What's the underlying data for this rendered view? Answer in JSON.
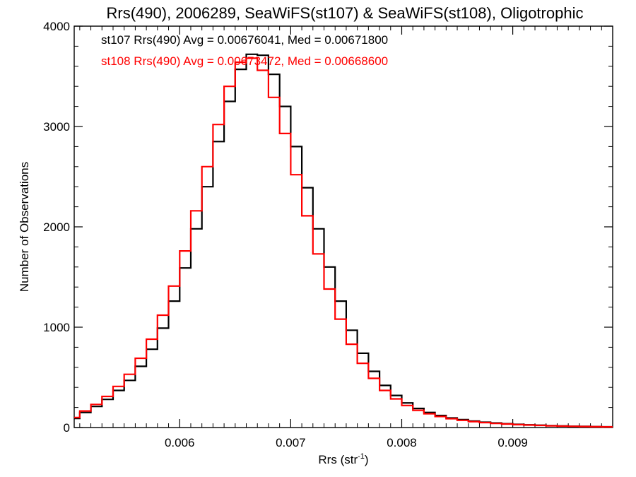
{
  "chart_data": {
    "type": "line",
    "title": "Rrs(490), 2006289, SeaWiFS(st107) & SeaWiFS(st108), Oligotrophic",
    "xlabel": "Rrs (str",
    "xlabel_superscript": "-1",
    "xlabel_suffix": ")",
    "ylabel": "Number of Observations",
    "xlim": [
      0.00505,
      0.0099
    ],
    "ylim": [
      0,
      4000
    ],
    "xticks": [
      {
        "value": 0.006,
        "label": "0.006"
      },
      {
        "value": 0.007,
        "label": "0.007"
      },
      {
        "value": 0.008,
        "label": "0.008"
      },
      {
        "value": 0.009,
        "label": "0.009"
      }
    ],
    "yticks": [
      {
        "value": 0,
        "label": "0"
      },
      {
        "value": 1000,
        "label": "1000"
      },
      {
        "value": 2000,
        "label": "2000"
      },
      {
        "value": 3000,
        "label": "3000"
      },
      {
        "value": 4000,
        "label": "4000"
      }
    ],
    "grid": false,
    "annotations": [
      {
        "text": "st107 Rrs(490) Avg = 0.00676041, Med = 0.00671800",
        "color": "#000000"
      },
      {
        "text": "st108 Rrs(490) Avg = 0.00673472, Med = 0.00668600",
        "color": "#ff0000"
      }
    ],
    "series": [
      {
        "color": "#000000",
        "x": [
          0.00505,
          0.00515,
          0.00525,
          0.00535,
          0.00545,
          0.00555,
          0.00565,
          0.00575,
          0.00585,
          0.00595,
          0.00605,
          0.00615,
          0.00625,
          0.00635,
          0.00645,
          0.00655,
          0.00665,
          0.00675,
          0.00685,
          0.00695,
          0.00705,
          0.00715,
          0.00725,
          0.00735,
          0.00745,
          0.00755,
          0.00765,
          0.00775,
          0.00785,
          0.00795,
          0.00805,
          0.00815,
          0.00825,
          0.00835,
          0.00845,
          0.00855,
          0.00865,
          0.00875,
          0.00885,
          0.00895,
          0.00905,
          0.00915,
          0.00925,
          0.00935,
          0.00945,
          0.00955,
          0.00965,
          0.00975,
          0.00985
        ],
        "y": [
          90,
          150,
          210,
          280,
          370,
          470,
          610,
          780,
          990,
          1260,
          1590,
          1980,
          2400,
          2850,
          3250,
          3570,
          3720,
          3710,
          3520,
          3200,
          2800,
          2390,
          1980,
          1600,
          1260,
          970,
          740,
          560,
          420,
          320,
          245,
          190,
          150,
          120,
          95,
          78,
          64,
          53,
          45,
          38,
          32,
          27,
          23,
          19,
          16,
          13,
          11,
          9,
          7
        ]
      },
      {
        "color": "#ff0000",
        "x": [
          0.00505,
          0.00515,
          0.00525,
          0.00535,
          0.00545,
          0.00555,
          0.00565,
          0.00575,
          0.00585,
          0.00595,
          0.00605,
          0.00615,
          0.00625,
          0.00635,
          0.00645,
          0.00655,
          0.00665,
          0.00675,
          0.00685,
          0.00695,
          0.00705,
          0.00715,
          0.00725,
          0.00735,
          0.00745,
          0.00755,
          0.00765,
          0.00775,
          0.00785,
          0.00795,
          0.00805,
          0.00815,
          0.00825,
          0.00835,
          0.00845,
          0.00855,
          0.00865,
          0.00875,
          0.00885,
          0.00895,
          0.00905,
          0.00915,
          0.00925,
          0.00935,
          0.00945,
          0.00955,
          0.00965,
          0.00975,
          0.00985
        ],
        "y": [
          100,
          165,
          230,
          310,
          410,
          530,
          690,
          880,
          1120,
          1410,
          1760,
          2160,
          2600,
          3020,
          3400,
          3640,
          3680,
          3560,
          3290,
          2930,
          2520,
          2110,
          1730,
          1380,
          1080,
          830,
          640,
          490,
          370,
          285,
          220,
          172,
          137,
          110,
          88,
          72,
          59,
          49,
          41,
          35,
          29,
          25,
          21,
          17,
          14,
          12,
          10,
          8,
          6
        ]
      }
    ]
  }
}
